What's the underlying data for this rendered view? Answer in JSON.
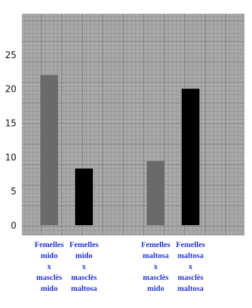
{
  "chart_data": {
    "type": "bar",
    "title": "",
    "xlabel": "",
    "ylabel": "",
    "ylim": [
      -1.5,
      31
    ],
    "yticks": [
      0,
      5,
      10,
      15,
      20,
      25
    ],
    "grid": true,
    "background_color": "#a9a9a9",
    "grid_color": "#707070",
    "label_color": "#2433d6",
    "categories": [
      [
        "Femelles",
        "mido",
        "x",
        "masclès",
        "mido"
      ],
      [
        "Femelles",
        "mido",
        "x",
        "masclès",
        "maltosa"
      ],
      [
        "Femelles",
        "maltosa",
        "x",
        "masclès",
        "mido"
      ],
      [
        "Femelles",
        "maltosa",
        "x",
        "masclès",
        "maltosa"
      ]
    ],
    "values": [
      22,
      8.3,
      9.4,
      20
    ],
    "bar_colors": [
      "#6a6a6a",
      "#000000",
      "#6a6a6a",
      "#000000"
    ]
  }
}
